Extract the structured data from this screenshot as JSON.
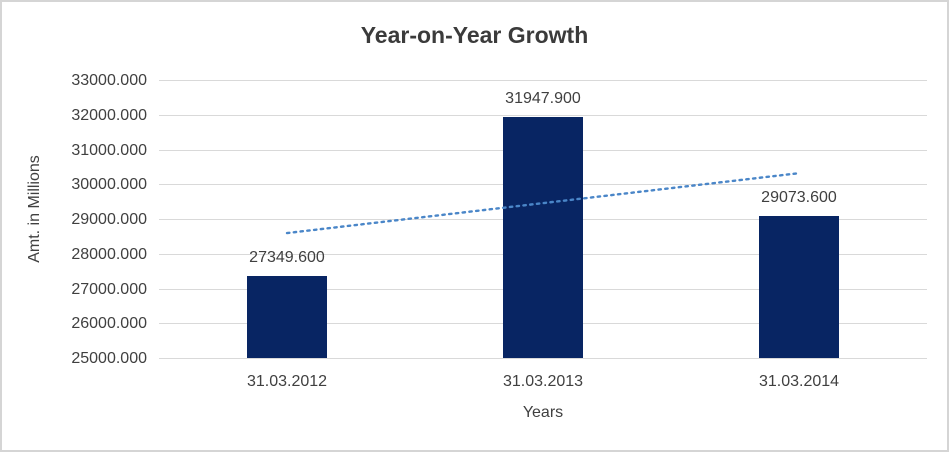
{
  "frame": {
    "border_color": "#D5D5D5",
    "background": "#FFFFFF"
  },
  "chart_data": {
    "type": "bar",
    "title": "Year-on-Year Growth",
    "xlabel": "Years",
    "ylabel": "Amt. in Millions",
    "categories": [
      "31.03.2012",
      "31.03.2013",
      "31.03.2014"
    ],
    "values": [
      27349.6,
      31947.9,
      29073.6
    ],
    "data_labels": [
      "27349.600",
      "31947.900",
      "29073.600"
    ],
    "y_ticks": [
      25000,
      26000,
      27000,
      28000,
      29000,
      30000,
      31000,
      32000,
      33000
    ],
    "y_tick_labels": [
      "25000.000",
      "26000.000",
      "27000.000",
      "28000.000",
      "29000.000",
      "30000.000",
      "31000.000",
      "32000.000",
      "33000.000"
    ],
    "ylim": [
      25000,
      33000
    ],
    "grid": true,
    "legend": "none",
    "bar_color": "#082563",
    "trendline": {
      "type": "linear",
      "style": "dotted",
      "color": "#4A86C8"
    },
    "text_color": "#404040",
    "title_color": "#3B3B3B",
    "gridline_color": "#D9D9D9"
  }
}
